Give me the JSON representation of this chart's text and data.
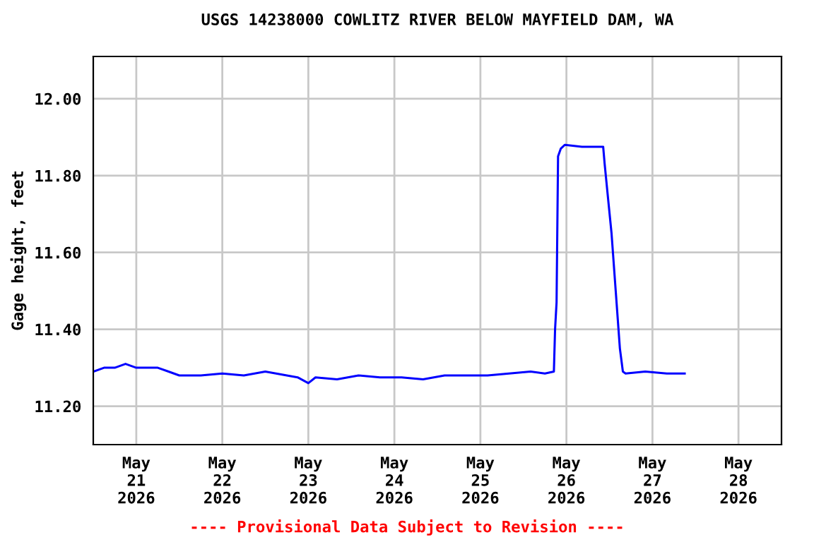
{
  "chart_data": {
    "type": "line",
    "title": "USGS 14238000 COWLITZ RIVER BELOW MAYFIELD DAM, WA",
    "ylabel": "Gage height, feet",
    "annotations": [
      "---- Provisional Data Subject to Revision ----"
    ],
    "series": [
      {
        "color": "#0000ff",
        "x": [
          "2026-05-20T12:00",
          "2026-05-20T15:00",
          "2026-05-20T18:00",
          "2026-05-20T21:00",
          "2026-05-21T00:00",
          "2026-05-21T03:00",
          "2026-05-21T06:00",
          "2026-05-21T09:00",
          "2026-05-21T12:00",
          "2026-05-21T18:00",
          "2026-05-22T00:00",
          "2026-05-22T06:00",
          "2026-05-22T12:00",
          "2026-05-22T18:00",
          "2026-05-22T21:00",
          "2026-05-23T00:00",
          "2026-05-23T02:00",
          "2026-05-23T08:00",
          "2026-05-23T14:00",
          "2026-05-23T20:00",
          "2026-05-24T02:00",
          "2026-05-24T08:00",
          "2026-05-24T14:00",
          "2026-05-24T20:00",
          "2026-05-25T02:00",
          "2026-05-25T08:00",
          "2026-05-25T14:00",
          "2026-05-25T18:00",
          "2026-05-25T20:30",
          "2026-05-25T20:50",
          "2026-05-25T21:15",
          "2026-05-25T21:40",
          "2026-05-25T22:25",
          "2026-05-25T23:35",
          "2026-05-26T04:20",
          "2026-05-26T10:15",
          "2026-05-26T10:40",
          "2026-05-26T11:50",
          "2026-05-26T12:35",
          "2026-05-26T13:45",
          "2026-05-26T14:55",
          "2026-05-26T15:45",
          "2026-05-26T16:30",
          "2026-05-26T22:00",
          "2026-05-27T04:00",
          "2026-05-27T09:00"
        ],
        "values": [
          11.29,
          11.3,
          11.3,
          11.31,
          11.3,
          11.3,
          11.3,
          11.29,
          11.28,
          11.28,
          11.285,
          11.28,
          11.29,
          11.28,
          11.275,
          11.26,
          11.275,
          11.27,
          11.28,
          11.275,
          11.275,
          11.27,
          11.28,
          11.28,
          11.28,
          11.285,
          11.29,
          11.285,
          11.29,
          11.4,
          11.47,
          11.85,
          11.87,
          11.88,
          11.875,
          11.875,
          11.83,
          11.72,
          11.65,
          11.5,
          11.35,
          11.29,
          11.285,
          11.29,
          11.285,
          11.285
        ]
      }
    ],
    "xlim": [
      "2026-05-20T12:00",
      "2026-05-28T12:00"
    ],
    "xticks": [
      {
        "value": "2026-05-21",
        "label": "May\n21\n2026"
      },
      {
        "value": "2026-05-22",
        "label": "May\n22\n2026"
      },
      {
        "value": "2026-05-23",
        "label": "May\n23\n2026"
      },
      {
        "value": "2026-05-24",
        "label": "May\n24\n2026"
      },
      {
        "value": "2026-05-25",
        "label": "May\n25\n2026"
      },
      {
        "value": "2026-05-26",
        "label": "May\n26\n2026"
      },
      {
        "value": "2026-05-27",
        "label": "May\n27\n2026"
      },
      {
        "value": "2026-05-28",
        "label": "May\n28\n2026"
      }
    ],
    "ylim": [
      11.1,
      12.11
    ],
    "yticks": [
      {
        "value": 11.2,
        "label": "11.20"
      },
      {
        "value": 11.4,
        "label": "11.40"
      },
      {
        "value": 11.6,
        "label": "11.60"
      },
      {
        "value": 11.8,
        "label": "11.80"
      },
      {
        "value": 12.0,
        "label": "12.00"
      }
    ],
    "grid": true,
    "legend": false
  }
}
